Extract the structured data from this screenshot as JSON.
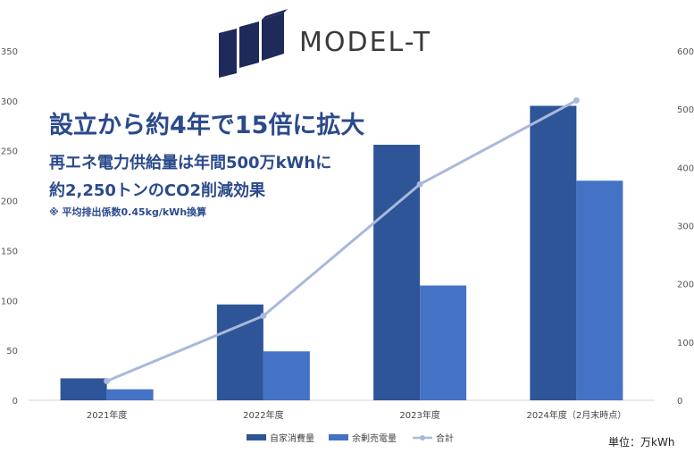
{
  "logo": {
    "name": "MODEL-T",
    "mark": "logo-mark-icon"
  },
  "headline": "設立から約4年で15倍に拡大",
  "subhead_1": "再エネ電力供給量は年間500万kWhに",
  "subhead_2": "約2,250トンのCO2削減効果",
  "note": "※ 平均排出係数0.45kg/kWh換算",
  "unit_label": "単位：万kWh",
  "colors": {
    "self": "#2e5597",
    "surplus": "#4472c4",
    "total": "#a9b8dc",
    "headline": "#2b4a8b"
  },
  "chart_data": {
    "type": "bar",
    "categories": [
      "2021年度",
      "2022年度",
      "2023年度",
      "2024年度（2月末時点）"
    ],
    "series": [
      {
        "name": "自家消費量",
        "type": "bar",
        "axis": "left",
        "values": [
          22,
          96,
          256,
          295
        ]
      },
      {
        "name": "余剰売電量",
        "type": "bar",
        "axis": "left",
        "values": [
          11,
          49,
          115,
          220
        ]
      },
      {
        "name": "合計",
        "type": "line",
        "axis": "right",
        "values": [
          33,
          145,
          371,
          515
        ]
      }
    ],
    "y_left": {
      "min": 0,
      "max": 350,
      "ticks": [
        0,
        50,
        100,
        150,
        200,
        250,
        300,
        350
      ]
    },
    "y_right": {
      "min": 0,
      "max": 600,
      "ticks": [
        0,
        100,
        200,
        300,
        400,
        500,
        600
      ]
    },
    "legend": "bottom",
    "grid": false
  }
}
